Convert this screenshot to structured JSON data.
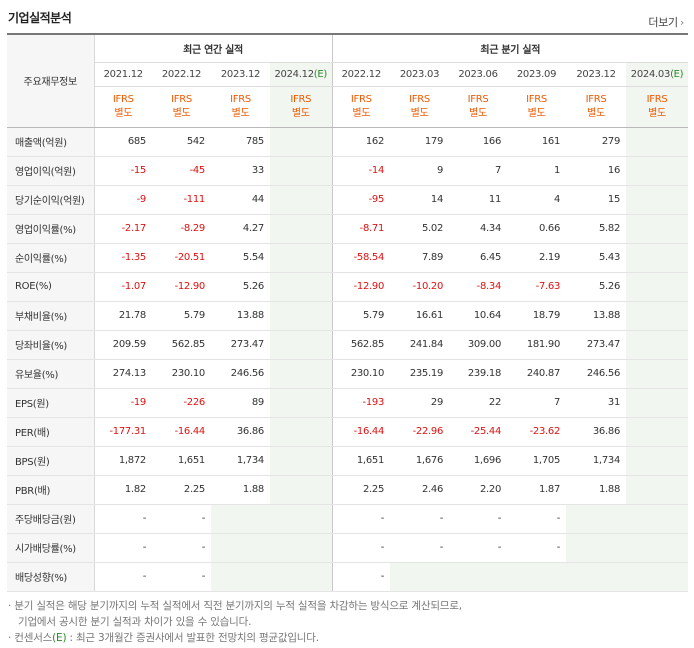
{
  "header": {
    "title": "기업실적분석",
    "more_label": "더보기",
    "more_arrow": "›"
  },
  "table": {
    "corner_label": "주요재무정보",
    "groups": {
      "annual": "최근 연간 실적",
      "quarter": "최근 분기 실적"
    },
    "periods": [
      "2021.12",
      "2022.12",
      "2023.12",
      "2024.12",
      "2022.12",
      "2023.03",
      "2023.06",
      "2023.09",
      "2023.12",
      "2024.03"
    ],
    "estimate_mark": "(E)",
    "ifrs_top": "IFRS",
    "ifrs_bottom": "별도",
    "rows": [
      {
        "label": "매출액(억원)",
        "values": [
          "685",
          "542",
          "785",
          "",
          "162",
          "179",
          "166",
          "161",
          "279",
          ""
        ]
      },
      {
        "label": "영업이익(억원)",
        "values": [
          "-15",
          "-45",
          "33",
          "",
          "-14",
          "9",
          "7",
          "1",
          "16",
          ""
        ]
      },
      {
        "label": "당기순이익(억원)",
        "values": [
          "-9",
          "-111",
          "44",
          "",
          "-95",
          "14",
          "11",
          "4",
          "15",
          ""
        ]
      },
      {
        "label": "영업이익률(%)",
        "values": [
          "-2.17",
          "-8.29",
          "4.27",
          "",
          "-8.71",
          "5.02",
          "4.34",
          "0.66",
          "5.82",
          ""
        ]
      },
      {
        "label": "순이익률(%)",
        "values": [
          "-1.35",
          "-20.51",
          "5.54",
          "",
          "-58.54",
          "7.89",
          "6.45",
          "2.19",
          "5.43",
          ""
        ]
      },
      {
        "label": "ROE(%)",
        "values": [
          "-1.07",
          "-12.90",
          "5.26",
          "",
          "-12.90",
          "-10.20",
          "-8.34",
          "-7.63",
          "5.26",
          ""
        ]
      },
      {
        "label": "부채비율(%)",
        "values": [
          "21.78",
          "5.79",
          "13.88",
          "",
          "5.79",
          "16.61",
          "10.64",
          "18.79",
          "13.88",
          ""
        ]
      },
      {
        "label": "당좌비율(%)",
        "values": [
          "209.59",
          "562.85",
          "273.47",
          "",
          "562.85",
          "241.84",
          "309.00",
          "181.90",
          "273.47",
          ""
        ]
      },
      {
        "label": "유보율(%)",
        "values": [
          "274.13",
          "230.10",
          "246.56",
          "",
          "230.10",
          "235.19",
          "239.18",
          "240.87",
          "246.56",
          ""
        ]
      },
      {
        "label": "EPS(원)",
        "values": [
          "-19",
          "-226",
          "89",
          "",
          "-193",
          "29",
          "22",
          "7",
          "31",
          ""
        ]
      },
      {
        "label": "PER(배)",
        "values": [
          "-177.31",
          "-16.44",
          "36.86",
          "",
          "-16.44",
          "-22.96",
          "-25.44",
          "-23.62",
          "36.86",
          ""
        ]
      },
      {
        "label": "BPS(원)",
        "values": [
          "1,872",
          "1,651",
          "1,734",
          "",
          "1,651",
          "1,676",
          "1,696",
          "1,705",
          "1,734",
          ""
        ]
      },
      {
        "label": "PBR(배)",
        "values": [
          "1.82",
          "2.25",
          "1.88",
          "",
          "2.25",
          "2.46",
          "2.20",
          "1.87",
          "1.88",
          ""
        ]
      },
      {
        "label": "주당배당금(원)",
        "values": [
          "-",
          "-",
          "",
          "",
          "-",
          "-",
          "-",
          "-",
          "",
          ""
        ]
      },
      {
        "label": "시가배당률(%)",
        "values": [
          "-",
          "-",
          "",
          "",
          "-",
          "-",
          "-",
          "-",
          "",
          ""
        ]
      },
      {
        "label": "배당성향(%)",
        "values": [
          "-",
          "-",
          "",
          "",
          "-",
          "",
          "",
          "",
          "",
          ""
        ]
      }
    ]
  },
  "notes": {
    "line1": "· 분기 실적은 해당 분기까지의 누적 실적에서 직전 분기까지의 누적 실적을 차감하는 방식으로 계산되므로,",
    "line2": "기업에서 공시한 분기 실적과 차이가 있을 수 있습니다.",
    "line3_a": "· 컨센서스",
    "line3_e": "(E)",
    "line3_b": ": 최근 3개월간 증권사에서 발표한 전망치의 평균값입니다."
  }
}
